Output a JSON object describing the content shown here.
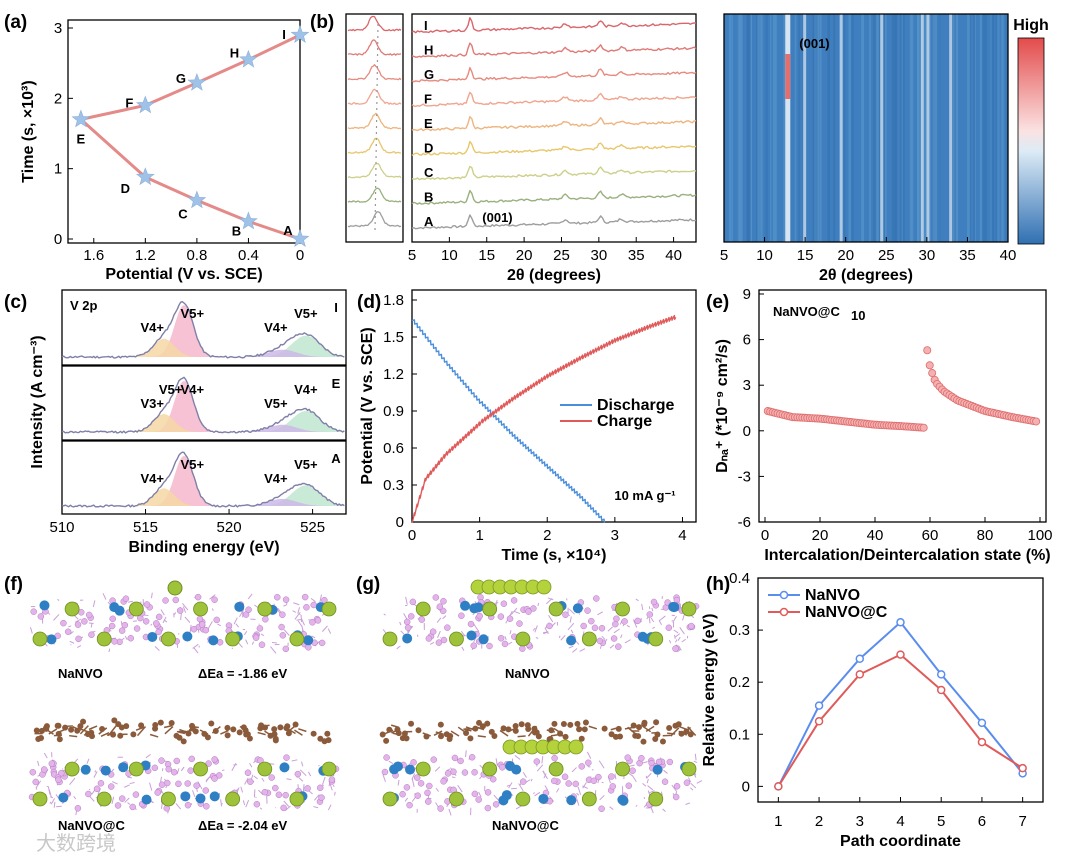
{
  "panel_labels": [
    "(a)",
    "(b)",
    "(c)",
    "(d)",
    "(e)",
    "(f)",
    "(g)",
    "(h)"
  ],
  "watermark": "大数跨境",
  "chart_data": [
    {
      "id": "a",
      "type": "scatter",
      "xlabel": "Potential (V vs. SCE)",
      "ylabel": "Time (s, ×10³)",
      "xlim": [
        1.8,
        0
      ],
      "ylim": [
        0,
        3
      ],
      "x_ticks": [
        "1.6",
        "1.2",
        "0.8",
        "0.4",
        "0"
      ],
      "y_ticks": [
        "0",
        "1",
        "2",
        "3"
      ],
      "points": [
        {
          "label": "A",
          "x": 0.0,
          "y": 0.0
        },
        {
          "label": "B",
          "x": 0.4,
          "y": 0.25
        },
        {
          "label": "C",
          "x": 0.8,
          "y": 0.55
        },
        {
          "label": "D",
          "x": 1.2,
          "y": 0.88
        },
        {
          "label": "E",
          "x": 1.7,
          "y": 1.7
        },
        {
          "label": "F",
          "x": 1.2,
          "y": 1.9
        },
        {
          "label": "G",
          "x": 0.8,
          "y": 2.22
        },
        {
          "label": "H",
          "x": 0.4,
          "y": 2.55
        },
        {
          "label": "I",
          "x": 0.0,
          "y": 2.9
        }
      ]
    },
    {
      "id": "b",
      "type": "line",
      "xlabel": "2θ (degrees)",
      "xlim": [
        5,
        43
      ],
      "x_ticks": [
        "5",
        "10",
        "15",
        "20",
        "25",
        "30",
        "35",
        "40"
      ],
      "peak_label": "(001)",
      "peak_x": 12.8,
      "series": [
        {
          "name": "A",
          "color": "#9e9e9e"
        },
        {
          "name": "B",
          "color": "#9ab07e"
        },
        {
          "name": "C",
          "color": "#cdd08a"
        },
        {
          "name": "D",
          "color": "#e8c76c"
        },
        {
          "name": "E",
          "color": "#efb47e"
        },
        {
          "name": "F",
          "color": "#f0a58f"
        },
        {
          "name": "G",
          "color": "#e88a7e"
        },
        {
          "name": "H",
          "color": "#e07a77"
        },
        {
          "name": "I",
          "color": "#d9666b"
        }
      ]
    },
    {
      "id": "b-heatmap",
      "type": "heatmap",
      "xlabel": "2θ (degrees)",
      "xlim": [
        5,
        40
      ],
      "x_ticks": [
        "5",
        "10",
        "15",
        "20",
        "25",
        "30",
        "35",
        "40"
      ],
      "annotation": "(001)",
      "colorbar_label": "High",
      "bright_lines": [
        12.8,
        15.0,
        19.5,
        24.5,
        29.5,
        30.2,
        33.0
      ]
    },
    {
      "id": "c",
      "type": "line",
      "xlabel": "Binding energy (eV)",
      "ylabel": "Intensity (A cm⁻³)",
      "xlim": [
        510,
        527
      ],
      "x_ticks": [
        "510",
        "515",
        "520",
        "525"
      ],
      "title_inset": "V 2p",
      "subpanels": [
        {
          "state": "I",
          "peak_labels": [
            "V4+",
            "V5+",
            "V4+",
            "V5+"
          ]
        },
        {
          "state": "E",
          "peak_labels": [
            "V3+",
            "V4+",
            "V5+",
            "V4+",
            "V5+"
          ]
        },
        {
          "state": "A",
          "peak_labels": [
            "V4+",
            "V5+",
            "V4+",
            "V5+"
          ]
        }
      ]
    },
    {
      "id": "d",
      "type": "line",
      "xlabel": "Time (s, ×10⁴)",
      "ylabel": "Potential (V vs. SCE)",
      "xlim": [
        0,
        4.2
      ],
      "ylim": [
        0,
        1.8
      ],
      "x_ticks": [
        "0",
        "1",
        "2",
        "3",
        "4"
      ],
      "y_ticks": [
        "0",
        "0.3",
        "0.6",
        "0.9",
        "1.2",
        "1.5",
        "1.8"
      ],
      "annotation": "10 mA g⁻¹",
      "series": [
        {
          "name": "Discharge",
          "color": "#4a8fdc",
          "x": [
            0,
            0.5,
            1,
            1.5,
            2,
            2.5,
            2.85
          ],
          "y": [
            1.65,
            1.3,
            0.98,
            0.7,
            0.45,
            0.2,
            0.0
          ]
        },
        {
          "name": "Charge",
          "color": "#e05a5a",
          "x": [
            0,
            0.2,
            0.5,
            1,
            1.5,
            2,
            2.5,
            3,
            3.5,
            3.9
          ],
          "y": [
            0.0,
            0.35,
            0.55,
            0.8,
            1.0,
            1.18,
            1.33,
            1.47,
            1.58,
            1.66
          ]
        }
      ]
    },
    {
      "id": "e",
      "type": "scatter",
      "xlabel": "Intercalation/Deintercalation state (%)",
      "ylabel": "Dₙₐ⁺ (*10⁻⁹ cm²/s)",
      "xlim": [
        0,
        100
      ],
      "ylim": [
        -6,
        9
      ],
      "x_ticks": [
        "0",
        "20",
        "40",
        "60",
        "80",
        "100"
      ],
      "y_ticks": [
        "-6",
        "-3",
        "0",
        "3",
        "6",
        "9"
      ],
      "title_inset": "NaNVO@C",
      "title_inset_sub": "10",
      "color": "#e06c6c",
      "segments": [
        {
          "x": [
            1,
            10,
            20,
            30,
            40,
            50,
            58
          ],
          "y": [
            1.3,
            0.9,
            0.8,
            0.6,
            0.4,
            0.3,
            0.2
          ]
        },
        {
          "x": [
            59,
            60,
            62,
            65,
            70,
            80,
            90,
            99
          ],
          "y": [
            5.3,
            4.2,
            3.2,
            2.6,
            2.0,
            1.3,
            0.9,
            0.6
          ]
        }
      ]
    },
    {
      "id": "h",
      "type": "line",
      "xlabel": "Path coordinate",
      "ylabel": "Relative energy (eV)",
      "xlim": [
        0.5,
        7.5
      ],
      "ylim": [
        -0.03,
        0.4
      ],
      "x_ticks": [
        "1",
        "2",
        "3",
        "4",
        "5",
        "6",
        "7"
      ],
      "y_ticks": [
        "0",
        "0.1",
        "0.2",
        "0.3",
        "0.4"
      ],
      "categories": [
        1,
        2,
        3,
        4,
        5,
        6,
        7
      ],
      "series": [
        {
          "name": "NaNVO",
          "color": "#5b8def",
          "values": [
            0.0,
            0.155,
            0.245,
            0.315,
            0.215,
            0.122,
            0.025
          ]
        },
        {
          "name": "NaNVO@C",
          "color": "#e05a5a",
          "values": [
            0.0,
            0.125,
            0.215,
            0.253,
            0.185,
            0.085,
            0.035
          ]
        }
      ]
    }
  ],
  "structures": {
    "f_top_label": "NaNVO",
    "f_top_energy": "ΔEa = -1.86 eV",
    "f_bottom_label": "NaNVO@C",
    "f_bottom_energy": "ΔEa = -2.04 eV",
    "g_top_label": "NaNVO",
    "g_bottom_label": "NaNVO@C"
  }
}
